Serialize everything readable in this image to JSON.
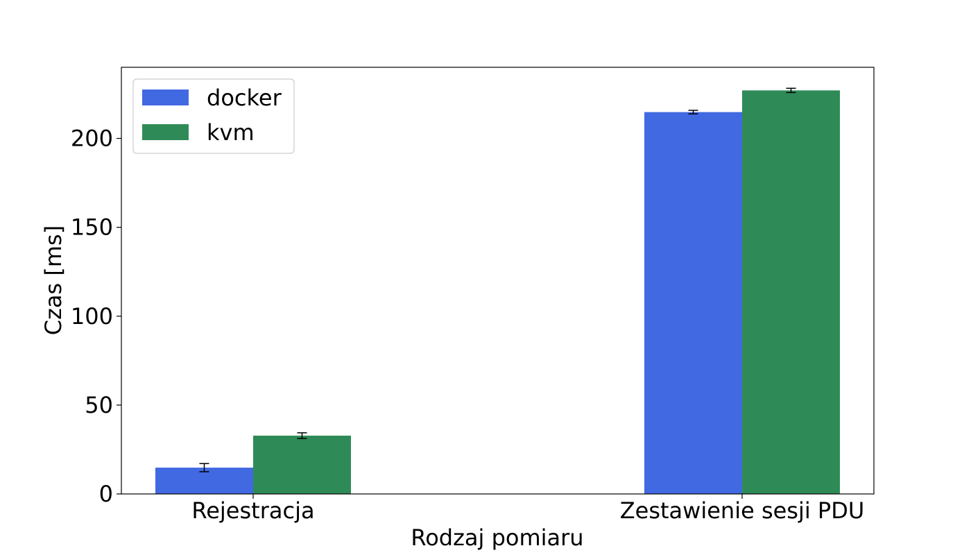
{
  "chart_data": {
    "type": "bar",
    "categories": [
      "Rejestracja",
      "Zestawienie sesji PDU"
    ],
    "series": [
      {
        "name": "docker",
        "color": "#4169e1",
        "values": [
          14.8,
          214.8
        ],
        "errors": [
          2.3,
          1.0
        ]
      },
      {
        "name": "kvm",
        "color": "#2e8b57",
        "values": [
          32.8,
          227.0
        ],
        "errors": [
          1.6,
          1.2
        ]
      }
    ],
    "xlabel": "Rodzaj pomiaru",
    "ylabel": "Czas [ms]",
    "ylim": [
      0,
      240
    ],
    "yticks": [
      0,
      50,
      100,
      150,
      200
    ],
    "ytick_labels": [
      "0",
      "50",
      "100",
      "150",
      "200"
    ],
    "legend_position": "top-left",
    "grid": false
  }
}
